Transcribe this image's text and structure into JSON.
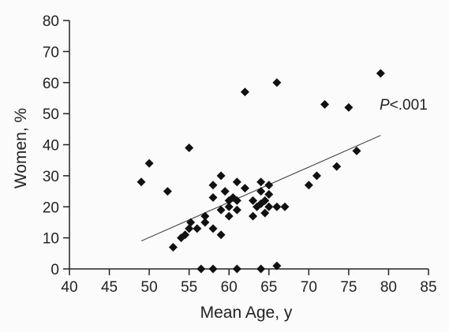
{
  "chart_data": {
    "type": "scatter",
    "title": "",
    "xlabel": "Mean Age, y",
    "ylabel": "Women, %",
    "xlim": [
      40,
      85
    ],
    "ylim": [
      0,
      80
    ],
    "xticks": [
      40,
      45,
      50,
      55,
      60,
      65,
      70,
      75,
      80,
      85
    ],
    "yticks": [
      0,
      10,
      20,
      30,
      40,
      50,
      60,
      70,
      80
    ],
    "grid": false,
    "annotation": {
      "prefix": "P",
      "text": "<.001"
    },
    "trendline": {
      "x": [
        49,
        79
      ],
      "y": [
        9,
        43
      ]
    },
    "points": [
      [
        49,
        28
      ],
      [
        50,
        34
      ],
      [
        52.3,
        25
      ],
      [
        53,
        7
      ],
      [
        54,
        10
      ],
      [
        54.5,
        11
      ],
      [
        55,
        13
      ],
      [
        55.2,
        15
      ],
      [
        55,
        39
      ],
      [
        56,
        13
      ],
      [
        56.5,
        0
      ],
      [
        57,
        15
      ],
      [
        57,
        17
      ],
      [
        58,
        0
      ],
      [
        58,
        13
      ],
      [
        58,
        23
      ],
      [
        58,
        27
      ],
      [
        59,
        30
      ],
      [
        59,
        19
      ],
      [
        59,
        11
      ],
      [
        59.5,
        25
      ],
      [
        60,
        17
      ],
      [
        60,
        20
      ],
      [
        60,
        22
      ],
      [
        60.5,
        23
      ],
      [
        61,
        28
      ],
      [
        61,
        22
      ],
      [
        61,
        19
      ],
      [
        61,
        0
      ],
      [
        62,
        26
      ],
      [
        62,
        57
      ],
      [
        63,
        22
      ],
      [
        63,
        17
      ],
      [
        63.5,
        20
      ],
      [
        64,
        28
      ],
      [
        64,
        25
      ],
      [
        64,
        21
      ],
      [
        64,
        0
      ],
      [
        64.5,
        22
      ],
      [
        64.5,
        18
      ],
      [
        65,
        27
      ],
      [
        65,
        24
      ],
      [
        65,
        20
      ],
      [
        66,
        60
      ],
      [
        66,
        20
      ],
      [
        66,
        1
      ],
      [
        67,
        20
      ],
      [
        70,
        27
      ],
      [
        71,
        30
      ],
      [
        72,
        53
      ],
      [
        73.5,
        33
      ],
      [
        75,
        52
      ],
      [
        76,
        38
      ],
      [
        79,
        63
      ]
    ]
  }
}
